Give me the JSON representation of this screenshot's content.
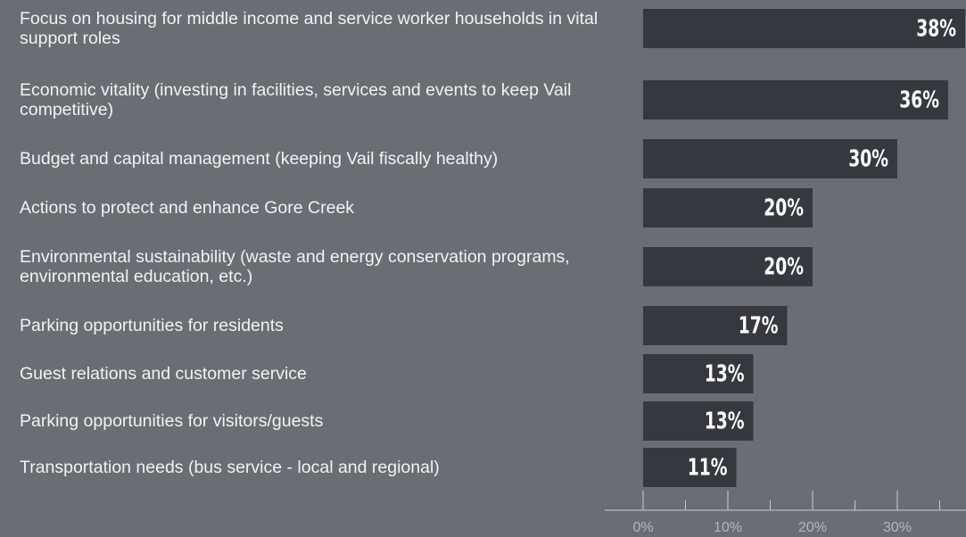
{
  "chart_data": {
    "type": "hbar",
    "categories": [
      "Focus on housing for middle income and service worker households in vital support roles",
      "Economic vitality (investing in facilities, services and events to keep Vail competitive)",
      "Budget and capital management (keeping Vail fiscally healthy)",
      "Actions to protect and enhance Gore Creek",
      "Environmental sustainability (waste and energy conservation programs, environmental education, etc.)",
      "Parking opportunities for residents",
      "Guest relations and customer service",
      "Parking opportunities for visitors/guests",
      "Transportation needs (bus service - local and regional)"
    ],
    "values": [
      38,
      36,
      30,
      20,
      20,
      17,
      13,
      13,
      11
    ],
    "value_labels": [
      "38%",
      "36%",
      "30%",
      "20%",
      "20%",
      "17%",
      "13%",
      "13%",
      "11%"
    ],
    "color": "#36383f",
    "xlim": [
      0,
      38
    ],
    "xticks": [
      {
        "value": 0,
        "label": "0%"
      },
      {
        "value": 10,
        "label": "10%"
      },
      {
        "value": 20,
        "label": "20%"
      },
      {
        "value": 30,
        "label": "30%"
      }
    ],
    "xminor_ticks": [
      5,
      15,
      25,
      35
    ]
  }
}
